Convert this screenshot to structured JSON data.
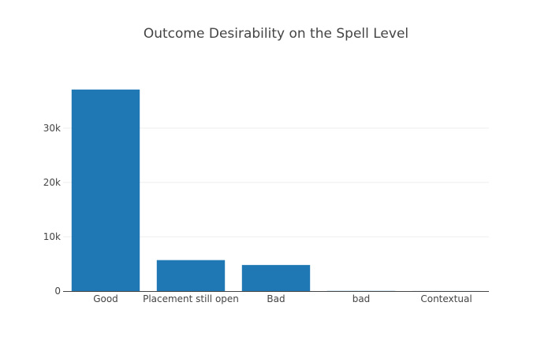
{
  "chart_data": {
    "type": "bar",
    "title": "Outcome Desirability on the Spell Level",
    "categories": [
      "Good",
      "Placement still open",
      "Bad",
      "bad",
      "Contextual"
    ],
    "values": [
      37100,
      5700,
      4800,
      25,
      10
    ],
    "xlabel": "",
    "ylabel": "",
    "ylim": [
      0,
      39100
    ],
    "yticks": [
      0,
      10000,
      20000,
      30000
    ],
    "ytick_labels": [
      "0",
      "10k",
      "20k",
      "30k"
    ],
    "grid": true,
    "bar_color": "#1f77b4",
    "grid_color": "#eeeeee",
    "axis_color": "#444444"
  }
}
